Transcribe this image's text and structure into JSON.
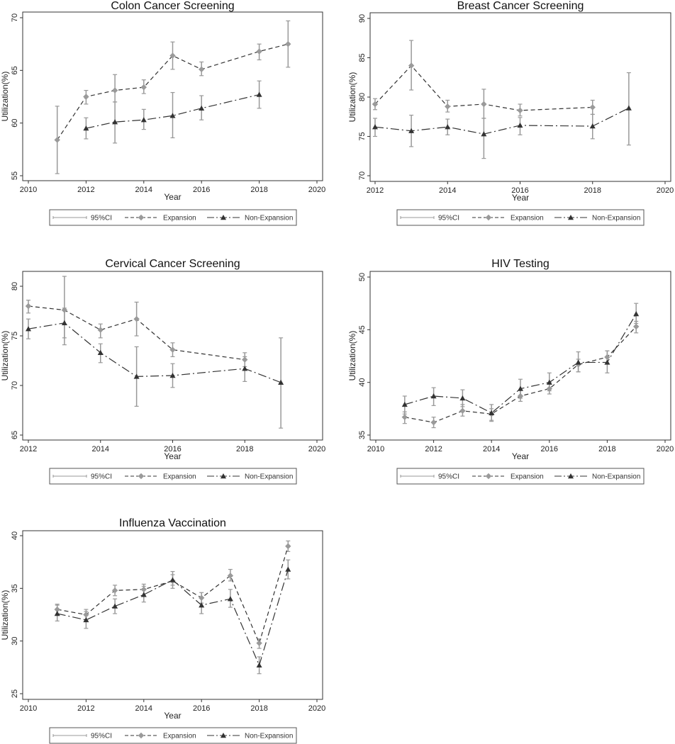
{
  "legend": {
    "ci": "95%CI",
    "expansion": "Expansion",
    "nonexpansion": "Non-Expansion"
  },
  "colors": {
    "expansion": "#9a9a9a",
    "nonexpansion": "#333333",
    "ci": "#999999",
    "line": "#333333"
  },
  "chart_data": [
    {
      "type": "line",
      "title": "Colon Cancer Screening",
      "xlabel": "Year",
      "ylabel": "Utilization(%)",
      "xlim": [
        2010,
        2020
      ],
      "ylim": [
        55,
        70
      ],
      "xticks": [
        2010,
        2012,
        2014,
        2016,
        2018,
        2020
      ],
      "yticks": [
        55,
        60,
        65,
        70
      ],
      "legend_position": "bottom",
      "series": [
        {
          "name": "Expansion",
          "x": [
            2011,
            2012,
            2013,
            2014,
            2015,
            2016,
            2018,
            2019
          ],
          "values": [
            58.4,
            62.5,
            63.1,
            63.4,
            66.4,
            65.1,
            66.8,
            67.5
          ],
          "ci_low": [
            55.2,
            61.8,
            62.0,
            62.8,
            65.1,
            64.5,
            66.0,
            65.3
          ],
          "ci_high": [
            61.6,
            63.1,
            64.6,
            64.1,
            67.7,
            65.8,
            67.5,
            69.7
          ]
        },
        {
          "name": "Non-Expansion",
          "x": [
            2012,
            2013,
            2014,
            2015,
            2016,
            2018
          ],
          "values": [
            59.5,
            60.1,
            60.3,
            60.7,
            61.4,
            62.7
          ],
          "ci_low": [
            58.5,
            58.1,
            59.4,
            58.6,
            60.3,
            61.4
          ],
          "ci_high": [
            60.5,
            62.0,
            61.3,
            62.9,
            62.6,
            64.0
          ]
        }
      ]
    },
    {
      "type": "line",
      "title": "Breast Cancer Screening",
      "xlabel": "Year",
      "ylabel": "Utilization(%)",
      "xlim": [
        2012,
        2020
      ],
      "ylim": [
        70,
        90
      ],
      "xticks": [
        2012,
        2014,
        2016,
        2018,
        2020
      ],
      "yticks": [
        70,
        75,
        80,
        85,
        90
      ],
      "legend_position": "bottom",
      "series": [
        {
          "name": "Expansion",
          "x": [
            2012,
            2013,
            2014,
            2015,
            2016,
            2018
          ],
          "values": [
            79.1,
            84.0,
            78.8,
            79.1,
            78.3,
            78.7
          ],
          "ci_low": [
            78.4,
            80.9,
            78.1,
            77.3,
            77.6,
            77.8
          ],
          "ci_high": [
            79.8,
            87.2,
            79.6,
            81.0,
            79.1,
            79.6
          ]
        },
        {
          "name": "Non-Expansion",
          "x": [
            2012,
            2013,
            2014,
            2015,
            2016,
            2018,
            2019
          ],
          "values": [
            76.2,
            75.7,
            76.2,
            75.3,
            76.4,
            76.3,
            78.6
          ],
          "ci_low": [
            75.0,
            73.7,
            75.2,
            72.2,
            75.2,
            74.7,
            73.9
          ],
          "ci_high": [
            77.3,
            77.7,
            77.2,
            77.3,
            77.4,
            77.8,
            83.1
          ]
        }
      ]
    },
    {
      "type": "line",
      "title": "Cervical Cancer Screening",
      "xlabel": "Year",
      "ylabel": "Utilization(%)",
      "xlim": [
        2012,
        2020
      ],
      "ylim": [
        65,
        80
      ],
      "xticks": [
        2012,
        2014,
        2016,
        2018,
        2020
      ],
      "yticks": [
        65,
        70,
        75,
        80
      ],
      "legend_position": "bottom",
      "series": [
        {
          "name": "Expansion",
          "x": [
            2012,
            2013,
            2014,
            2015,
            2016,
            2018
          ],
          "values": [
            78.0,
            77.6,
            75.6,
            76.7,
            73.6,
            72.6
          ],
          "ci_low": [
            77.3,
            74.8,
            74.8,
            75.0,
            72.9,
            71.9
          ],
          "ci_high": [
            78.6,
            81.0,
            76.2,
            78.4,
            74.3,
            73.3
          ]
        },
        {
          "name": "Non-Expansion",
          "x": [
            2012,
            2013,
            2014,
            2015,
            2016,
            2018,
            2019
          ],
          "values": [
            75.7,
            76.3,
            73.3,
            70.9,
            71.0,
            71.7,
            70.3
          ],
          "ci_low": [
            74.7,
            74.1,
            72.3,
            67.9,
            69.8,
            70.4,
            65.7
          ],
          "ci_high": [
            76.7,
            77.8,
            74.2,
            73.9,
            72.2,
            72.9,
            74.8
          ]
        }
      ]
    },
    {
      "type": "line",
      "title": "HIV Testing",
      "xlabel": "Year",
      "ylabel": "Utilization(%)",
      "xlim": [
        2010,
        2020
      ],
      "ylim": [
        35,
        50
      ],
      "xticks": [
        2010,
        2012,
        2014,
        2016,
        2018,
        2020
      ],
      "yticks": [
        35,
        40,
        45,
        50
      ],
      "legend_position": "bottom",
      "series": [
        {
          "name": "Expansion",
          "x": [
            2011,
            2012,
            2013,
            2014,
            2015,
            2016,
            2017,
            2018,
            2019
          ],
          "values": [
            36.7,
            36.2,
            37.3,
            37.0,
            38.7,
            39.4,
            41.7,
            42.4,
            45.3
          ],
          "ci_low": [
            36.1,
            35.7,
            36.8,
            36.4,
            38.2,
            38.9,
            41.0,
            41.8,
            44.7
          ],
          "ci_high": [
            37.2,
            36.7,
            37.9,
            37.5,
            39.3,
            40.0,
            42.2,
            43.0,
            45.8
          ]
        },
        {
          "name": "Non-Expansion",
          "x": [
            2011,
            2012,
            2013,
            2014,
            2015,
            2016,
            2017,
            2018,
            2019
          ],
          "values": [
            37.9,
            38.7,
            38.5,
            37.1,
            39.4,
            40.0,
            41.9,
            41.9,
            46.5
          ],
          "ci_low": [
            37.0,
            37.8,
            37.7,
            36.3,
            38.5,
            39.2,
            41.0,
            40.9,
            45.6
          ],
          "ci_high": [
            38.7,
            39.5,
            39.3,
            37.9,
            40.3,
            40.9,
            42.9,
            43.0,
            47.5
          ]
        }
      ]
    },
    {
      "type": "line",
      "title": "Influenza Vaccination",
      "xlabel": "Year",
      "ylabel": "Utilization(%)",
      "xlim": [
        2010,
        2020
      ],
      "ylim": [
        25,
        40
      ],
      "xticks": [
        2010,
        2012,
        2014,
        2016,
        2018,
        2020
      ],
      "yticks": [
        25,
        30,
        35,
        40
      ],
      "legend_position": "bottom",
      "series": [
        {
          "name": "Expansion",
          "x": [
            2011,
            2012,
            2013,
            2014,
            2015,
            2016,
            2017,
            2018,
            2019
          ],
          "values": [
            33.0,
            32.5,
            34.8,
            34.9,
            35.7,
            34.1,
            36.2,
            29.8,
            39.0
          ],
          "ci_low": [
            32.5,
            32.0,
            34.3,
            34.3,
            35.3,
            33.6,
            35.7,
            29.3,
            38.5
          ],
          "ci_high": [
            33.5,
            33.0,
            35.3,
            35.4,
            36.6,
            34.6,
            36.8,
            30.2,
            39.5
          ]
        },
        {
          "name": "Non-Expansion",
          "x": [
            2011,
            2012,
            2013,
            2014,
            2015,
            2016,
            2017,
            2018,
            2019
          ],
          "values": [
            32.6,
            32.0,
            33.3,
            34.4,
            35.8,
            33.4,
            34.0,
            27.7,
            36.8
          ],
          "ci_low": [
            31.9,
            31.2,
            32.6,
            33.7,
            35.0,
            32.6,
            33.2,
            26.9,
            35.9
          ],
          "ci_high": [
            33.4,
            32.8,
            34.0,
            35.2,
            36.3,
            34.1,
            34.9,
            28.5,
            37.7
          ]
        }
      ]
    }
  ]
}
